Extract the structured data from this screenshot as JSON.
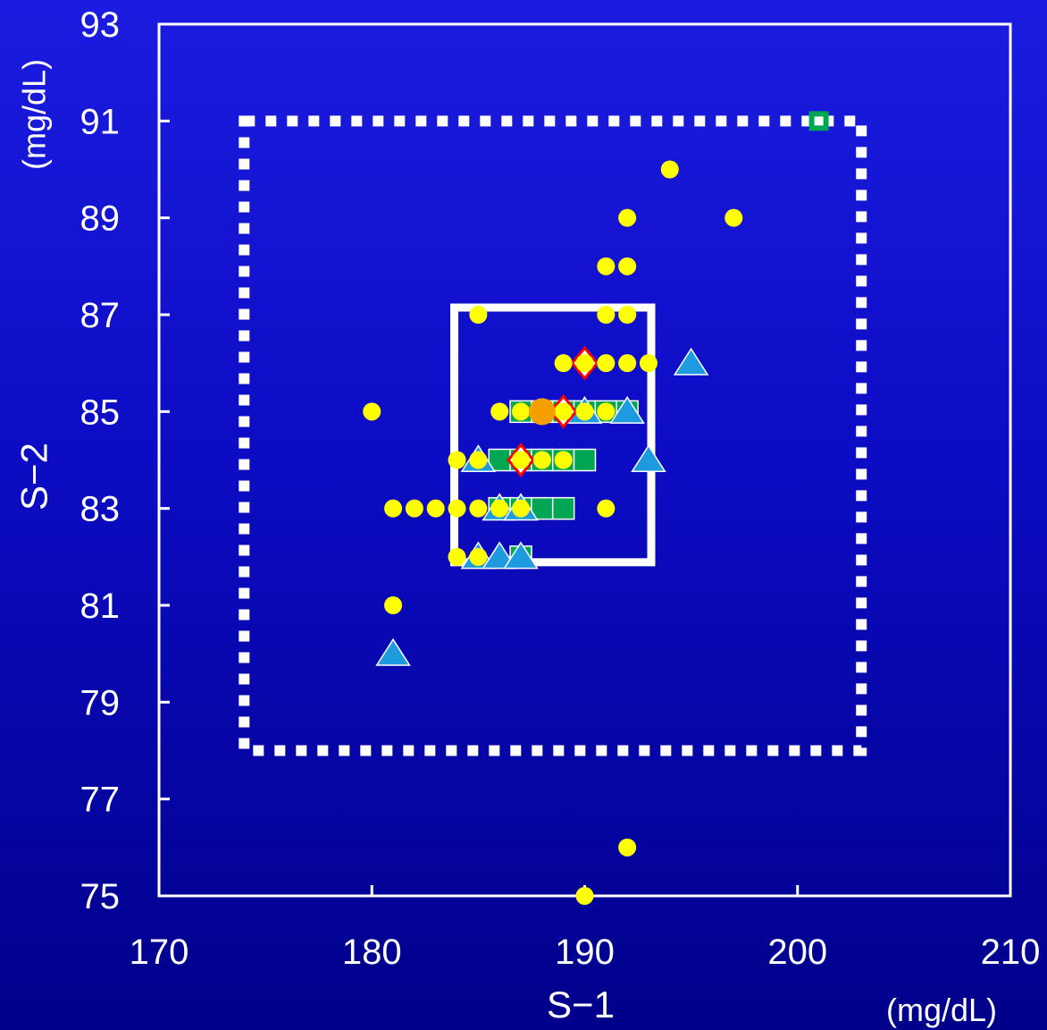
{
  "chart_data": {
    "type": "scatter",
    "xlabel": "S−1",
    "ylabel": "S−2",
    "x_unit": "(mg/dL)",
    "y_unit": "(mg/dL)",
    "xlim": [
      170,
      210
    ],
    "ylim": [
      75,
      93
    ],
    "x_ticks": [
      "170",
      "180",
      "190",
      "200",
      "210"
    ],
    "y_ticks": [
      "75",
      "77",
      "79",
      "81",
      "83",
      "85",
      "87",
      "89",
      "91",
      "93"
    ],
    "grid": false,
    "legend": "none",
    "colors": {
      "background_top": "#1c1ce0",
      "background_bottom": "#00008a",
      "circle": "#ffff00",
      "square": "#00a651",
      "triangle": "#1e9be0",
      "diamond": "#ff0000",
      "mean_circle": "#f5a000",
      "boxes": "#ffffff"
    },
    "outer_range_box": {
      "x": [
        174,
        203
      ],
      "y": [
        78,
        91
      ],
      "style": "dotted"
    },
    "inner_range_box": {
      "x": [
        184,
        193
      ],
      "y": [
        82,
        87
      ],
      "style": "solid"
    },
    "series": [
      {
        "marker": "square",
        "points": [
          [
            201,
            91
          ],
          [
            186,
            84
          ],
          [
            187,
            84
          ],
          [
            188,
            84
          ],
          [
            189,
            84
          ],
          [
            190,
            84
          ],
          [
            187,
            85
          ],
          [
            188,
            85
          ],
          [
            189,
            85
          ],
          [
            190,
            85
          ],
          [
            191,
            85
          ],
          [
            192,
            85
          ],
          [
            186,
            83
          ],
          [
            187,
            83
          ],
          [
            188,
            83
          ],
          [
            189,
            83
          ],
          [
            187,
            82
          ]
        ]
      },
      {
        "marker": "triangle",
        "points": [
          [
            195,
            86
          ],
          [
            193,
            84
          ],
          [
            185,
            84
          ],
          [
            181,
            80
          ],
          [
            185,
            82
          ],
          [
            186,
            82
          ],
          [
            187,
            82
          ],
          [
            186,
            83
          ],
          [
            187,
            83
          ],
          [
            190,
            85
          ],
          [
            192,
            85
          ]
        ]
      },
      {
        "marker": "diamond",
        "points": [
          [
            190,
            86
          ],
          [
            189,
            85
          ],
          [
            187,
            84
          ]
        ]
      },
      {
        "marker": "circle",
        "points": [
          [
            194,
            90
          ],
          [
            192,
            89
          ],
          [
            197,
            89
          ],
          [
            191,
            88
          ],
          [
            192,
            88
          ],
          [
            185,
            87
          ],
          [
            191,
            87
          ],
          [
            192,
            87
          ],
          [
            189,
            86
          ],
          [
            190,
            86
          ],
          [
            191,
            86
          ],
          [
            192,
            86
          ],
          [
            193,
            86
          ],
          [
            180,
            85
          ],
          [
            186,
            85
          ],
          [
            187,
            85
          ],
          [
            189,
            85
          ],
          [
            190,
            85
          ],
          [
            191,
            85
          ],
          [
            184,
            84
          ],
          [
            185,
            84
          ],
          [
            187,
            84
          ],
          [
            188,
            84
          ],
          [
            189,
            84
          ],
          [
            181,
            83
          ],
          [
            182,
            83
          ],
          [
            183,
            83
          ],
          [
            184,
            83
          ],
          [
            185,
            83
          ],
          [
            186,
            83
          ],
          [
            187,
            83
          ],
          [
            191,
            83
          ],
          [
            184,
            82
          ],
          [
            185,
            82
          ],
          [
            181,
            81
          ],
          [
            192,
            76
          ],
          [
            190,
            75
          ]
        ]
      },
      {
        "marker": "mean-circle",
        "points": [
          [
            188,
            85
          ]
        ]
      }
    ]
  }
}
